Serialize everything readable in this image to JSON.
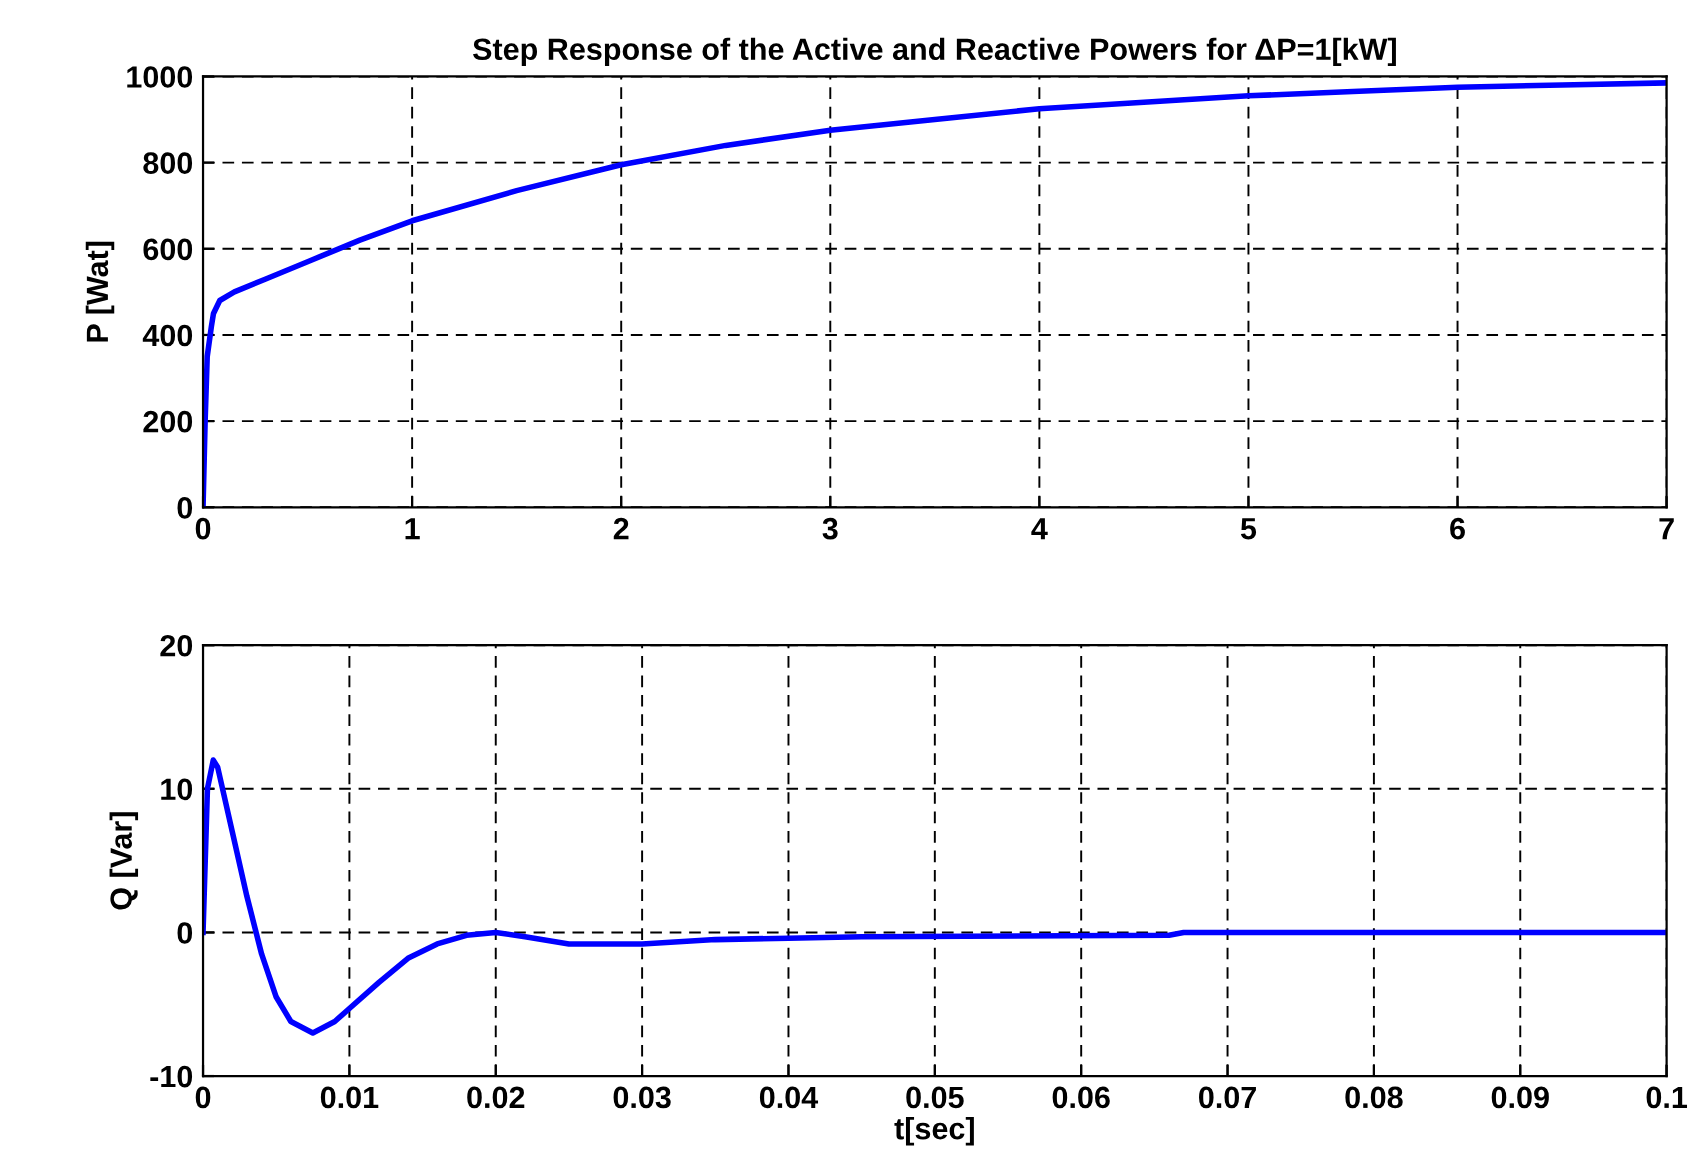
{
  "chart_data": [
    {
      "type": "line",
      "title": "Step Response of the Active and Reactive Powers for ΔP=1[kW]",
      "ylabel": "P [Wat]",
      "grid": true,
      "xlim": [
        0,
        7
      ],
      "xticks": [
        0,
        1,
        2,
        3,
        4,
        5,
        6,
        7
      ],
      "ylim": [
        0,
        1000
      ],
      "yticks": [
        0,
        200,
        400,
        600,
        800,
        1000
      ],
      "series": [
        {
          "color": "#0000ff",
          "x": [
            0,
            0.01,
            0.02,
            0.04,
            0.05,
            0.08,
            0.15,
            0.3,
            0.5,
            0.75,
            1,
            1.5,
            2,
            2.5,
            3,
            3.5,
            4,
            4.5,
            5,
            5.5,
            6,
            6.5,
            7
          ],
          "values": [
            0,
            200,
            350,
            420,
            450,
            480,
            500,
            530,
            570,
            620,
            665,
            735,
            795,
            840,
            875,
            900,
            925,
            940,
            955,
            965,
            975,
            980,
            985
          ]
        }
      ]
    },
    {
      "type": "line",
      "xlabel": "t[sec]",
      "ylabel": "Q [Var]",
      "grid": true,
      "xlim": [
        0,
        0.1
      ],
      "xticks": [
        0,
        0.01,
        0.02,
        0.03,
        0.04,
        0.05,
        0.06,
        0.07,
        0.08,
        0.09,
        0.1
      ],
      "ylim": [
        -10,
        20
      ],
      "yticks": [
        -10,
        0,
        10,
        20
      ],
      "series": [
        {
          "color": "#0000ff",
          "x": [
            0,
            0.0003,
            0.0007,
            0.001,
            0.002,
            0.003,
            0.004,
            0.005,
            0.006,
            0.0075,
            0.009,
            0.01,
            0.012,
            0.014,
            0.016,
            0.018,
            0.02,
            0.022,
            0.025,
            0.03,
            0.035,
            0.04,
            0.045,
            0.066,
            0.067,
            0.1
          ],
          "values": [
            0,
            10,
            12,
            11.5,
            7,
            2.5,
            -1.5,
            -4.5,
            -6.2,
            -7,
            -6.2,
            -5.3,
            -3.5,
            -1.8,
            -0.8,
            -0.2,
            0,
            -0.3,
            -0.8,
            -0.8,
            -0.5,
            -0.4,
            -0.3,
            -0.2,
            0,
            0
          ]
        }
      ]
    }
  ]
}
